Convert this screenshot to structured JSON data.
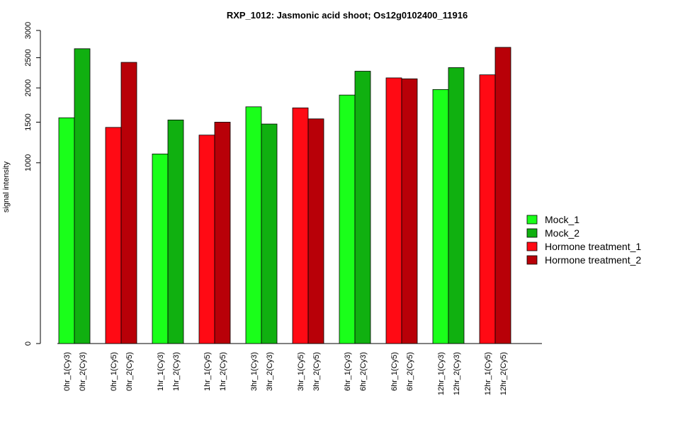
{
  "chart_data": {
    "type": "bar",
    "title": "RXP_1012: Jasmonic acid shoot; Os12g0102400_11916",
    "xlabel": "",
    "ylabel": "signal intensity",
    "yscale": "sqrt",
    "ylim": [
      0,
      3000
    ],
    "yticks": [
      0,
      1000,
      1500,
      2000,
      2500,
      3000
    ],
    "bars": [
      {
        "label": "0hr_1(Cy3)",
        "value": 1560,
        "series": "Mock_1"
      },
      {
        "label": "0hr_2(Cy3)",
        "value": 2660,
        "series": "Mock_2"
      },
      {
        "label": "0hr_1(Cy5)",
        "value": 1430,
        "series": "Hormone treatment_1"
      },
      {
        "label": "0hr_2(Cy5)",
        "value": 2420,
        "series": "Hormone treatment_2"
      },
      {
        "label": "1hr_1(Cy3)",
        "value": 1100,
        "series": "Mock_1"
      },
      {
        "label": "1hr_2(Cy3)",
        "value": 1530,
        "series": "Mock_2"
      },
      {
        "label": "1hr_1(Cy5)",
        "value": 1330,
        "series": "Hormone treatment_1"
      },
      {
        "label": "1hr_2(Cy5)",
        "value": 1500,
        "series": "Hormone treatment_2"
      },
      {
        "label": "3hr_1(Cy3)",
        "value": 1715,
        "series": "Mock_1"
      },
      {
        "label": "3hr_2(Cy3)",
        "value": 1475,
        "series": "Mock_2"
      },
      {
        "label": "3hr_1(Cy5)",
        "value": 1700,
        "series": "Hormone treatment_1"
      },
      {
        "label": "3hr_2(Cy5)",
        "value": 1545,
        "series": "Hormone treatment_2"
      },
      {
        "label": "6hr_1(Cy3)",
        "value": 1890,
        "series": "Mock_1"
      },
      {
        "label": "6hr_2(Cy3)",
        "value": 2270,
        "series": "Mock_2"
      },
      {
        "label": "6hr_1(Cy5)",
        "value": 2160,
        "series": "Hormone treatment_1"
      },
      {
        "label": "6hr_2(Cy5)",
        "value": 2145,
        "series": "Hormone treatment_2"
      },
      {
        "label": "12hr_1(Cy3)",
        "value": 1975,
        "series": "Mock_1"
      },
      {
        "label": "12hr_2(Cy3)",
        "value": 2330,
        "series": "Mock_2"
      },
      {
        "label": "12hr_1(Cy5)",
        "value": 2210,
        "series": "Hormone treatment_1"
      },
      {
        "label": "12hr_2(Cy5)",
        "value": 2685,
        "series": "Hormone treatment_2"
      }
    ],
    "legend": {
      "position": "right",
      "entries": [
        {
          "name": "Mock_1",
          "color": "#1aff1a"
        },
        {
          "name": "Mock_2",
          "color": "#10b010"
        },
        {
          "name": "Hormone treatment_1",
          "color": "#ff0a14"
        },
        {
          "name": "Hormone treatment_2",
          "color": "#b80008"
        }
      ]
    },
    "grid": false
  }
}
